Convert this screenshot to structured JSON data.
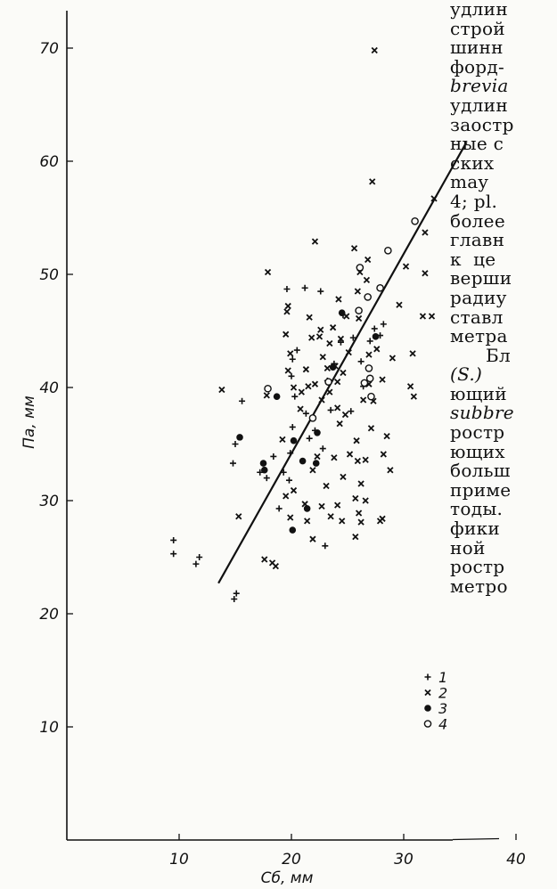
{
  "chart_data": {
    "type": "scatter",
    "xlabel": "Сб, мм",
    "ylabel": "Па, мм",
    "xlim": [
      0,
      40
    ],
    "ylim": [
      0,
      75
    ],
    "x_ticks": [
      "10",
      "20",
      "30",
      "40"
    ],
    "y_ticks": [
      "10",
      "20",
      "30",
      "40",
      "50",
      "60",
      "70"
    ],
    "grid": false,
    "legend_position": "lower-right",
    "series": [
      {
        "name": "1",
        "marker": "plus",
        "points": [
          [
            9.5,
            26.5
          ],
          [
            9.5,
            25.3
          ],
          [
            11.5,
            24.4
          ],
          [
            11.8,
            25.0
          ],
          [
            14.9,
            21.3
          ],
          [
            15.1,
            21.8
          ],
          [
            14.8,
            33.3
          ],
          [
            15.0,
            35.0
          ],
          [
            15.6,
            38.8
          ],
          [
            17.2,
            32.5
          ],
          [
            17.8,
            32.0
          ],
          [
            18.4,
            33.9
          ],
          [
            18.9,
            29.3
          ],
          [
            19.3,
            32.5
          ],
          [
            19.8,
            31.8
          ],
          [
            19.9,
            34.2
          ],
          [
            20.1,
            36.5
          ],
          [
            20.3,
            39.2
          ],
          [
            20.0,
            41.0
          ],
          [
            20.1,
            42.5
          ],
          [
            20.5,
            43.3
          ],
          [
            21.3,
            37.7
          ],
          [
            21.6,
            35.5
          ],
          [
            22.1,
            36.2
          ],
          [
            22.8,
            34.6
          ],
          [
            23.0,
            26.0
          ],
          [
            23.2,
            40.6
          ],
          [
            23.8,
            42.1
          ],
          [
            24.4,
            44.0
          ],
          [
            24.6,
            46.4
          ],
          [
            23.5,
            38.0
          ],
          [
            25.5,
            44.4
          ],
          [
            26.2,
            42.3
          ],
          [
            27.0,
            44.1
          ],
          [
            27.4,
            45.2
          ],
          [
            27.9,
            44.6
          ],
          [
            28.2,
            45.6
          ],
          [
            21.2,
            48.8
          ],
          [
            22.6,
            48.5
          ],
          [
            19.6,
            48.7
          ],
          [
            25.3,
            37.9
          ],
          [
            26.4,
            40.1
          ]
        ]
      },
      {
        "name": "2",
        "marker": "cross",
        "points": [
          [
            13.8,
            39.8
          ],
          [
            15.3,
            28.6
          ],
          [
            17.6,
            24.8
          ],
          [
            18.3,
            24.5
          ],
          [
            18.6,
            24.2
          ],
          [
            17.9,
            50.2
          ],
          [
            22.1,
            52.9
          ],
          [
            27.2,
            58.2
          ],
          [
            27.4,
            69.8
          ],
          [
            25.6,
            52.3
          ],
          [
            32.7,
            56.7
          ],
          [
            31.9,
            53.7
          ],
          [
            31.9,
            50.1
          ],
          [
            30.2,
            50.7
          ],
          [
            29.6,
            47.3
          ],
          [
            31.7,
            46.3
          ],
          [
            32.5,
            46.3
          ],
          [
            30.8,
            43.0
          ],
          [
            30.6,
            40.1
          ],
          [
            30.9,
            39.2
          ],
          [
            29.0,
            42.6
          ],
          [
            28.5,
            35.7
          ],
          [
            28.2,
            34.1
          ],
          [
            28.8,
            32.7
          ],
          [
            27.9,
            28.2
          ],
          [
            28.1,
            28.4
          ],
          [
            26.4,
            38.9
          ],
          [
            26.9,
            40.3
          ],
          [
            27.6,
            43.4
          ],
          [
            26.0,
            46.1
          ],
          [
            26.1,
            50.2
          ],
          [
            26.8,
            51.3
          ],
          [
            26.7,
            49.5
          ],
          [
            25.9,
            48.5
          ],
          [
            24.2,
            47.8
          ],
          [
            24.4,
            44.3
          ],
          [
            23.9,
            41.9
          ],
          [
            24.1,
            40.5
          ],
          [
            23.2,
            41.7
          ],
          [
            22.7,
            38.9
          ],
          [
            22.1,
            40.3
          ],
          [
            21.5,
            40.1
          ],
          [
            20.9,
            39.6
          ],
          [
            20.2,
            40.0
          ],
          [
            20.8,
            38.1
          ],
          [
            19.7,
            41.5
          ],
          [
            19.9,
            43.0
          ],
          [
            21.8,
            44.4
          ],
          [
            22.6,
            45.1
          ],
          [
            21.6,
            46.2
          ],
          [
            19.6,
            46.7
          ],
          [
            19.7,
            47.2
          ],
          [
            19.5,
            44.7
          ],
          [
            17.8,
            39.3
          ],
          [
            19.2,
            35.4
          ],
          [
            19.5,
            30.4
          ],
          [
            19.9,
            28.5
          ],
          [
            20.2,
            30.9
          ],
          [
            21.4,
            28.2
          ],
          [
            21.9,
            26.6
          ],
          [
            21.2,
            29.7
          ],
          [
            22.7,
            29.5
          ],
          [
            23.1,
            31.3
          ],
          [
            23.5,
            28.6
          ],
          [
            24.5,
            28.2
          ],
          [
            24.1,
            29.6
          ],
          [
            24.6,
            32.1
          ],
          [
            25.2,
            34.1
          ],
          [
            25.8,
            35.3
          ],
          [
            25.9,
            33.5
          ],
          [
            26.2,
            31.5
          ],
          [
            26.6,
            33.6
          ],
          [
            26.2,
            28.1
          ],
          [
            26.0,
            28.9
          ],
          [
            25.7,
            26.8
          ],
          [
            27.1,
            36.4
          ],
          [
            24.3,
            36.8
          ],
          [
            23.8,
            33.8
          ],
          [
            22.3,
            33.9
          ],
          [
            21.9,
            32.7
          ],
          [
            25.7,
            30.2
          ],
          [
            26.6,
            30.0
          ],
          [
            23.4,
            39.6
          ],
          [
            24.8,
            37.6
          ],
          [
            27.3,
            38.8
          ],
          [
            26.9,
            42.9
          ],
          [
            28.1,
            40.7
          ],
          [
            25.1,
            43.1
          ],
          [
            24.9,
            46.3
          ],
          [
            23.7,
            45.3
          ],
          [
            24.6,
            41.3
          ],
          [
            22.8,
            42.7
          ],
          [
            23.4,
            43.9
          ],
          [
            22.5,
            44.5
          ],
          [
            24.1,
            38.2
          ],
          [
            21.3,
            41.6
          ]
        ]
      },
      {
        "name": "3",
        "marker": "filled-circle",
        "points": [
          [
            15.4,
            35.6
          ],
          [
            17.5,
            33.3
          ],
          [
            17.6,
            32.7
          ],
          [
            18.7,
            39.2
          ],
          [
            20.2,
            35.3
          ],
          [
            20.1,
            27.4
          ],
          [
            21.4,
            29.3
          ],
          [
            21.0,
            33.5
          ],
          [
            22.2,
            33.3
          ],
          [
            22.3,
            36.0
          ],
          [
            23.7,
            41.8
          ],
          [
            24.5,
            46.6
          ],
          [
            27.5,
            44.5
          ]
        ]
      },
      {
        "name": "4",
        "marker": "open-circle",
        "points": [
          [
            17.9,
            39.9
          ],
          [
            21.9,
            37.3
          ],
          [
            26.5,
            40.4
          ],
          [
            27.0,
            40.8
          ],
          [
            26.9,
            41.7
          ],
          [
            27.1,
            39.2
          ],
          [
            26.0,
            46.8
          ],
          [
            26.1,
            50.6
          ],
          [
            26.8,
            48.0
          ],
          [
            27.9,
            48.8
          ],
          [
            28.6,
            52.1
          ],
          [
            31.0,
            54.7
          ],
          [
            23.3,
            40.5
          ]
        ]
      }
    ],
    "regression_line": [
      [
        13.5,
        22.7
      ],
      [
        35.6,
        61.7
      ]
    ]
  },
  "side_text": [
    {
      "t": "удлин",
      "i": false
    },
    {
      "t": "строй",
      "i": false
    },
    {
      "t": "шинн",
      "i": false
    },
    {
      "t": "форд-",
      "i": false
    },
    {
      "t": "brevia",
      "i": true
    },
    {
      "t": "удлин",
      "i": false
    },
    {
      "t": "заостр",
      "i": false
    },
    {
      "t": "ные с",
      "i": false
    },
    {
      "t": "ских",
      "i": false
    },
    {
      "t": "may",
      "i": false
    },
    {
      "t": "4; pl.",
      "i": false
    },
    {
      "t": "более",
      "i": false
    },
    {
      "t": "главн",
      "i": false
    },
    {
      "t": "к  це",
      "i": false
    },
    {
      "t": "верши",
      "i": false
    },
    {
      "t": "радиу",
      "i": false
    },
    {
      "t": "ставл",
      "i": false
    },
    {
      "t": "метра",
      "i": false
    },
    {
      "t": "      Бл",
      "i": false
    },
    {
      "t": "(S.)",
      "i": true
    },
    {
      "t": "ющий",
      "i": false
    },
    {
      "t": "subbre",
      "i": true
    },
    {
      "t": "ростр",
      "i": false
    },
    {
      "t": "ющих",
      "i": false
    },
    {
      "t": "больш",
      "i": false
    },
    {
      "t": "приме",
      "i": false
    },
    {
      "t": "тоды.",
      "i": false
    },
    {
      "t": "фики",
      "i": false
    },
    {
      "t": "ной",
      "i": false
    },
    {
      "t": "ростр",
      "i": false
    },
    {
      "t": "метро",
      "i": false
    }
  ]
}
